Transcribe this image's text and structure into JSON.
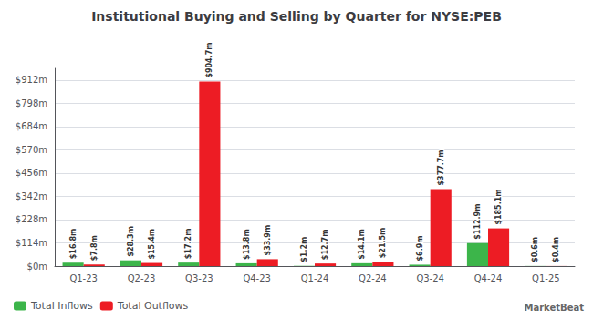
{
  "chart_data": {
    "type": "bar",
    "title": "Institutional Buying and Selling by Quarter for NYSE:PEB",
    "categories": [
      "Q1-23",
      "Q2-23",
      "Q3-23",
      "Q4-23",
      "Q1-24",
      "Q2-24",
      "Q3-24",
      "Q4-24",
      "Q1-25"
    ],
    "series": [
      {
        "name": "Total Inflows",
        "color": "#3cb54a",
        "values": [
          16.8,
          28.3,
          17.2,
          13.8,
          1.2,
          14.1,
          6.9,
          112.9,
          0.6
        ],
        "value_labels": [
          "$16.8m",
          "$28.3m",
          "$17.2m",
          "$13.8m",
          "$1.2m",
          "$14.1m",
          "$6.9m",
          "$112.9m",
          "$0.6m"
        ]
      },
      {
        "name": "Total Outflows",
        "color": "#ed1c24",
        "values": [
          7.8,
          15.4,
          904.7,
          33.9,
          12.7,
          21.5,
          377.7,
          185.1,
          0.4
        ],
        "value_labels": [
          "$7.8m",
          "$15.4m",
          "$904.7m",
          "$33.9m",
          "$12.7m",
          "$21.5m",
          "$377.7m",
          "$185.1m",
          "$0.4m"
        ]
      }
    ],
    "ylim": [
      0,
      970
    ],
    "yticks": [
      {
        "value": 0,
        "label": "$0m"
      },
      {
        "value": 114,
        "label": "$114m"
      },
      {
        "value": 228,
        "label": "$228m"
      },
      {
        "value": 342,
        "label": "$342m"
      },
      {
        "value": 456,
        "label": "$456m"
      },
      {
        "value": 570,
        "label": "$570m"
      },
      {
        "value": 684,
        "label": "$684m"
      },
      {
        "value": 798,
        "label": "$798m"
      },
      {
        "value": 912,
        "label": "$912m"
      }
    ],
    "grid": true,
    "legend": "lower left",
    "data_labels": true,
    "annotations": [
      "MarketBeat"
    ]
  }
}
